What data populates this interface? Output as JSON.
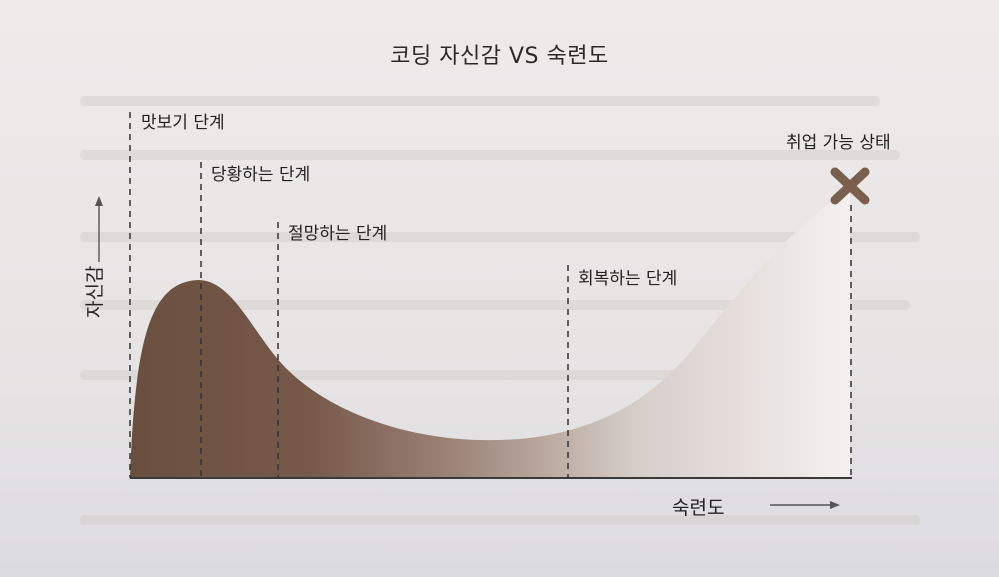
{
  "title": "코딩 자신감 VS 숙련도",
  "axes": {
    "y_label": "자신감",
    "x_label": "숙련도"
  },
  "stages": [
    {
      "label": "맛보기 단계"
    },
    {
      "label": "당황하는 단계"
    },
    {
      "label": "절망하는 단계"
    },
    {
      "label": "회복하는 단계"
    },
    {
      "label": "취업 가능 상태"
    }
  ],
  "colors": {
    "curve_dark": "#6a5040",
    "curve_light": "#f2efed",
    "marker": "#7a5e4e",
    "axis": "#333333"
  },
  "icons": {
    "end_marker": "x-mark-icon",
    "y_arrow": "arrow-up-icon",
    "x_arrow": "arrow-right-icon"
  }
}
